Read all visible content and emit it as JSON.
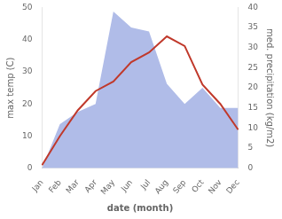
{
  "chart_data": {
    "type": "line",
    "x_label": "date (month)",
    "y_label": "max temp (C)",
    "y2_label": "med. precipitation (kg/m2)",
    "categories": [
      "Jan",
      "Feb",
      "Mar",
      "Apr",
      "May",
      "Jun",
      "Jul",
      "Aug",
      "Sep",
      "Oct",
      "Nov",
      "Dec"
    ],
    "series": [
      {
        "type": "line",
        "color": "#c0392b",
        "axis": "y",
        "values": [
          1,
          10,
          18,
          24,
          27,
          33,
          36,
          41,
          38,
          26,
          20,
          12
        ]
      },
      {
        "type": "area",
        "color": "#b0bce8",
        "axis": "y2",
        "values": [
          0,
          11,
          14,
          16,
          39,
          35,
          34,
          21,
          16,
          20,
          15,
          15
        ]
      }
    ],
    "ylim": [
      0,
      50
    ],
    "yticks": [
      0,
      10,
      20,
      30,
      40,
      50
    ],
    "y2lim": [
      0,
      40
    ],
    "y2ticks": [
      0,
      5,
      10,
      15,
      20,
      25,
      30,
      35,
      40
    ],
    "grid": false
  }
}
